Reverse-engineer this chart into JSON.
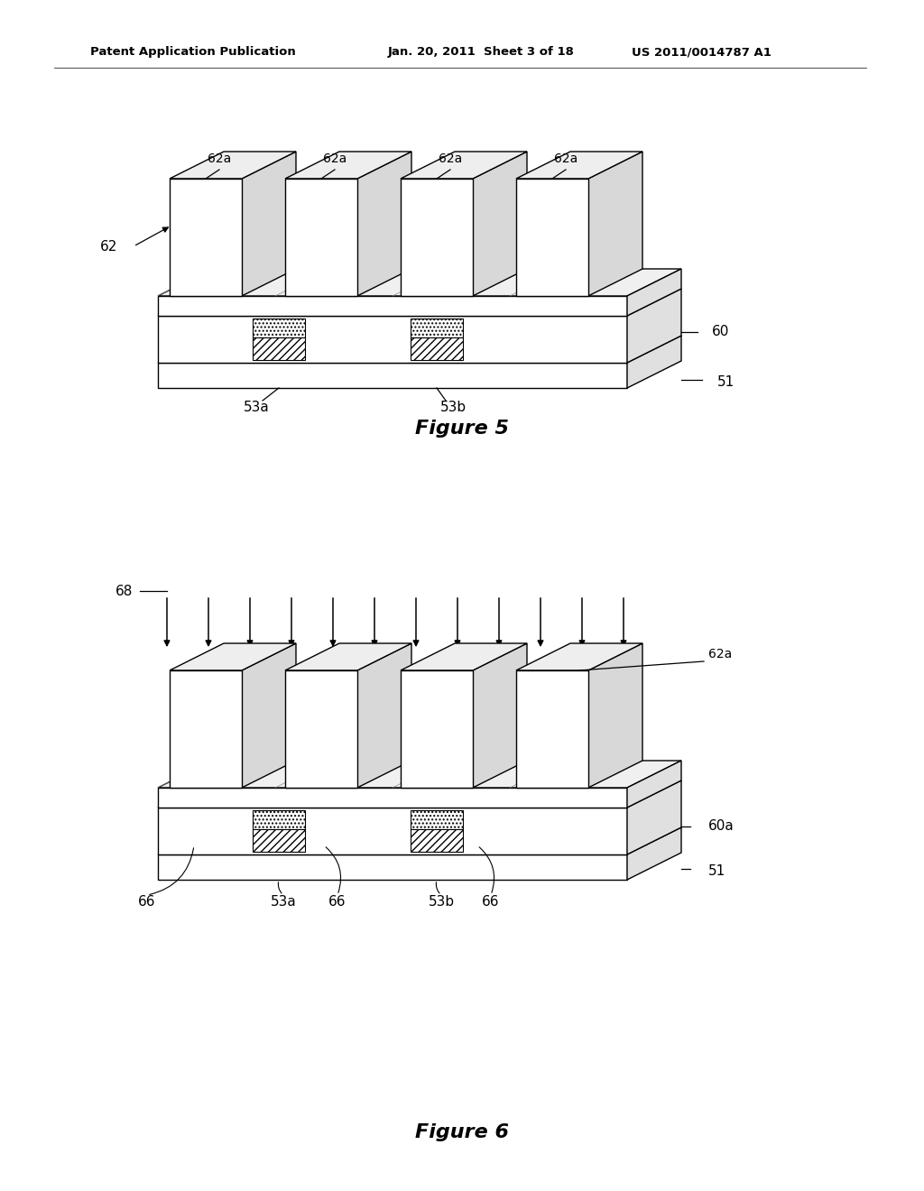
{
  "fig_width": 10.24,
  "fig_height": 13.2,
  "bg_color": "#ffffff",
  "header_left": "Patent Application Publication",
  "header_mid": "Jan. 20, 2011  Sheet 3 of 18",
  "header_right": "US 2011/0014787 A1",
  "figure5_title": "Figure 5",
  "figure6_title": "Figure 6",
  "line_color": "#000000",
  "face_white": "#ffffff",
  "face_light": "#e8e8e8",
  "face_lighter": "#f5f5f5"
}
